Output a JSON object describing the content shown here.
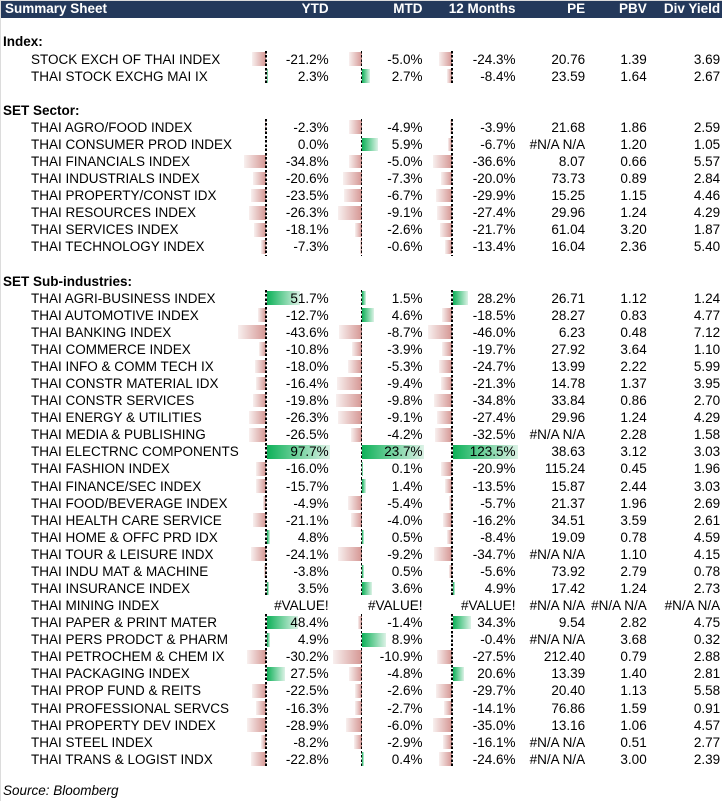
{
  "header": {
    "title": "Summary Sheet",
    "columns": [
      "YTD",
      "MTD",
      "12 Months",
      "PE",
      "PBV",
      "Div Yield"
    ]
  },
  "footer": {
    "source": "Source: Bloomberg"
  },
  "colors": {
    "header_bg": "#24395B",
    "header_text": "#FFFFFF",
    "positive_bar_base": "#0EB159",
    "positive_bar_tip": "#DCF2E6",
    "negative_bar_base": "#D59693",
    "negative_bar_tip": "#F8F0EF",
    "axis_line": "#000000",
    "text": "#000000"
  },
  "sections": [
    {
      "label": "Index:",
      "rows": [
        {
          "label": "STOCK EXCH OF THAI INDEX",
          "ytd": -21.2,
          "mtd": -5.0,
          "m12": -24.3,
          "pe": "20.76",
          "pbv": "1.39",
          "div": "3.69"
        },
        {
          "label": "THAI STOCK EXCHG MAI IX",
          "ytd": 2.3,
          "mtd": 2.7,
          "m12": -8.4,
          "pe": "23.59",
          "pbv": "1.64",
          "div": "2.67"
        }
      ]
    },
    {
      "label": "SET Sector:",
      "rows": [
        {
          "label": "THAI AGRO/FOOD INDEX",
          "ytd": -2.3,
          "mtd": -4.9,
          "m12": -3.9,
          "pe": "21.68",
          "pbv": "1.86",
          "div": "2.59"
        },
        {
          "label": "THAI CONSUMER PROD INDEX",
          "ytd": 0.0,
          "mtd": 5.9,
          "m12": -6.7,
          "pe": "#N/A N/A",
          "pbv": "1.20",
          "div": "1.05"
        },
        {
          "label": "THAI FINANCIALS INDEX",
          "ytd": -34.8,
          "mtd": -5.0,
          "m12": -36.6,
          "pe": "8.07",
          "pbv": "0.66",
          "div": "5.57"
        },
        {
          "label": "THAI INDUSTRIALS INDEX",
          "ytd": -20.6,
          "mtd": -7.3,
          "m12": -20.0,
          "pe": "73.73",
          "pbv": "0.89",
          "div": "2.84"
        },
        {
          "label": "THAI PROPERTY/CONST IDX",
          "ytd": -23.5,
          "mtd": -6.7,
          "m12": -29.9,
          "pe": "15.25",
          "pbv": "1.15",
          "div": "4.46"
        },
        {
          "label": "THAI RESOURCES INDEX",
          "ytd": -26.3,
          "mtd": -9.1,
          "m12": -27.4,
          "pe": "29.96",
          "pbv": "1.24",
          "div": "4.29"
        },
        {
          "label": "THAI SERVICES INDEX",
          "ytd": -18.1,
          "mtd": -2.6,
          "m12": -21.7,
          "pe": "61.04",
          "pbv": "3.20",
          "div": "1.87"
        },
        {
          "label": "THAI TECHNOLOGY INDEX",
          "ytd": -7.3,
          "mtd": -0.6,
          "m12": -13.4,
          "pe": "16.04",
          "pbv": "2.36",
          "div": "5.40"
        }
      ]
    },
    {
      "label": "SET Sub-industries:",
      "rows": [
        {
          "label": "THAI AGRI-BUSINESS INDEX",
          "ytd": 51.7,
          "mtd": 1.5,
          "m12": 28.2,
          "pe": "26.71",
          "pbv": "1.12",
          "div": "1.24"
        },
        {
          "label": "THAI AUTOMOTIVE INDEX",
          "ytd": -12.7,
          "mtd": 4.6,
          "m12": -18.5,
          "pe": "28.27",
          "pbv": "0.83",
          "div": "4.77"
        },
        {
          "label": "THAI BANKING INDEX",
          "ytd": -43.6,
          "mtd": -8.7,
          "m12": -46.0,
          "pe": "6.23",
          "pbv": "0.48",
          "div": "7.12"
        },
        {
          "label": "THAI COMMERCE INDEX",
          "ytd": -10.8,
          "mtd": -3.9,
          "m12": -19.7,
          "pe": "27.92",
          "pbv": "3.64",
          "div": "1.10"
        },
        {
          "label": "THAI INFO & COMM TECH IX",
          "ytd": -18.0,
          "mtd": -5.3,
          "m12": -24.7,
          "pe": "13.99",
          "pbv": "2.22",
          "div": "5.99"
        },
        {
          "label": "THAI CONSTR MATERIAL IDX",
          "ytd": -16.4,
          "mtd": -9.4,
          "m12": -21.3,
          "pe": "14.78",
          "pbv": "1.37",
          "div": "3.95"
        },
        {
          "label": "THAI CONSTR SERVICES",
          "ytd": -19.8,
          "mtd": -9.8,
          "m12": -34.8,
          "pe": "33.84",
          "pbv": "0.86",
          "div": "2.70"
        },
        {
          "label": "THAI ENERGY & UTILITIES",
          "ytd": -26.3,
          "mtd": -9.1,
          "m12": -27.4,
          "pe": "29.96",
          "pbv": "1.24",
          "div": "4.29"
        },
        {
          "label": "THAI MEDIA & PUBLISHING",
          "ytd": -26.5,
          "mtd": -4.2,
          "m12": -32.5,
          "pe": "#N/A N/A",
          "pbv": "2.28",
          "div": "1.58"
        },
        {
          "label": "THAI ELECTRNC COMPONENTS",
          "ytd": 97.7,
          "mtd": 23.7,
          "m12": 123.5,
          "pe": "38.63",
          "pbv": "3.12",
          "div": "3.03"
        },
        {
          "label": "THAI FASHION INDEX",
          "ytd": -16.0,
          "mtd": 0.1,
          "m12": -20.9,
          "pe": "115.24",
          "pbv": "0.45",
          "div": "1.96"
        },
        {
          "label": "THAI FINANCE/SEC INDEX",
          "ytd": -15.7,
          "mtd": 1.4,
          "m12": -13.5,
          "pe": "15.87",
          "pbv": "2.44",
          "div": "3.03"
        },
        {
          "label": "THAI FOOD/BEVERAGE INDEX",
          "ytd": -4.9,
          "mtd": -5.4,
          "m12": -5.7,
          "pe": "21.37",
          "pbv": "1.96",
          "div": "2.69"
        },
        {
          "label": "THAI HEALTH CARE SERVICE",
          "ytd": -21.1,
          "mtd": -4.0,
          "m12": -16.2,
          "pe": "34.51",
          "pbv": "3.59",
          "div": "2.61"
        },
        {
          "label": "THAI HOME & OFFC PRD IDX",
          "ytd": 4.8,
          "mtd": 0.5,
          "m12": -8.4,
          "pe": "19.09",
          "pbv": "0.78",
          "div": "4.59"
        },
        {
          "label": "THAI TOUR & LEISURE INDX",
          "ytd": -24.1,
          "mtd": -9.2,
          "m12": -34.7,
          "pe": "#N/A N/A",
          "pbv": "1.10",
          "div": "4.15"
        },
        {
          "label": "THAI INDU MAT & MACHINE",
          "ytd": -3.8,
          "mtd": 0.5,
          "m12": -5.6,
          "pe": "73.92",
          "pbv": "2.79",
          "div": "0.78"
        },
        {
          "label": "THAI INSURANCE INDEX",
          "ytd": 3.5,
          "mtd": 3.6,
          "m12": 4.9,
          "pe": "17.42",
          "pbv": "1.24",
          "div": "2.73"
        },
        {
          "label": "THAI MINING INDEX",
          "ytd": "#VALUE!",
          "mtd": "#VALUE!",
          "m12": "#VALUE!",
          "pe": "#N/A N/A",
          "pbv": "#N/A N/A",
          "div": "#N/A N/A"
        },
        {
          "label": "THAI PAPER & PRINT MATER",
          "ytd": 48.4,
          "mtd": -1.4,
          "m12": 34.3,
          "pe": "9.54",
          "pbv": "2.82",
          "div": "4.75"
        },
        {
          "label": "THAI PERS PRODCT & PHARM",
          "ytd": 4.9,
          "mtd": 8.9,
          "m12": -0.4,
          "pe": "#N/A N/A",
          "pbv": "3.68",
          "div": "0.32"
        },
        {
          "label": "THAI PETROCHEM & CHEM IX",
          "ytd": -30.2,
          "mtd": -10.9,
          "m12": -27.5,
          "pe": "212.40",
          "pbv": "0.79",
          "div": "2.88"
        },
        {
          "label": "THAI PACKAGING INDEX",
          "ytd": 27.5,
          "mtd": -4.8,
          "m12": 20.6,
          "pe": "13.39",
          "pbv": "1.40",
          "div": "2.81"
        },
        {
          "label": "THAI PROP FUND & REITS",
          "ytd": -22.5,
          "mtd": -2.6,
          "m12": -29.7,
          "pe": "20.40",
          "pbv": "1.13",
          "div": "5.58"
        },
        {
          "label": "THAI PROFESSIONAL SERVCS",
          "ytd": -16.3,
          "mtd": -2.7,
          "m12": -14.1,
          "pe": "76.86",
          "pbv": "1.59",
          "div": "0.91"
        },
        {
          "label": "THAI PROPERTY DEV INDEX",
          "ytd": -28.9,
          "mtd": -6.0,
          "m12": -35.0,
          "pe": "13.16",
          "pbv": "1.06",
          "div": "4.57"
        },
        {
          "label": "THAI STEEL INDEX",
          "ytd": -8.2,
          "mtd": -2.9,
          "m12": -16.1,
          "pe": "#N/A N/A",
          "pbv": "0.51",
          "div": "2.77"
        },
        {
          "label": "THAI TRANS & LOGIST INDX",
          "ytd": -22.8,
          "mtd": 0.4,
          "m12": -24.6,
          "pe": "#N/A N/A",
          "pbv": "3.00",
          "div": "2.39"
        }
      ]
    }
  ]
}
